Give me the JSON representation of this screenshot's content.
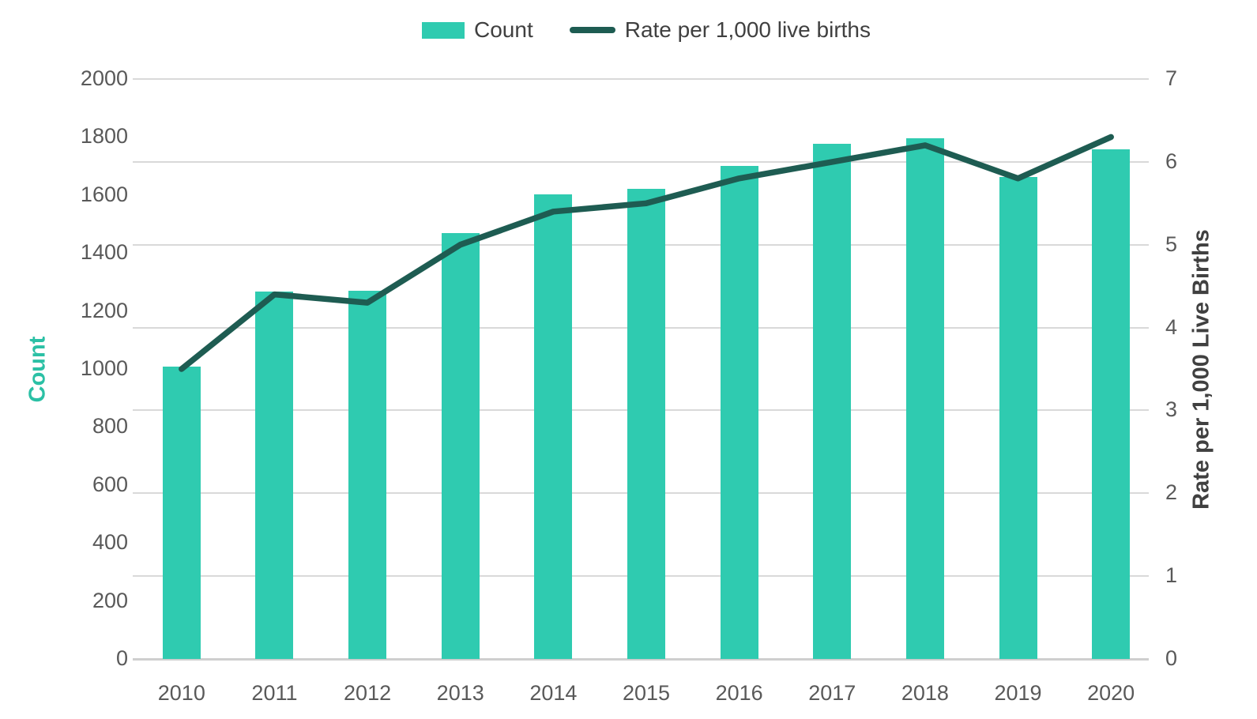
{
  "legend": {
    "count_label": "Count",
    "rate_label": "Rate per 1,000 live births"
  },
  "left_axis": {
    "title": "Count",
    "title_color": "#2bc0a5",
    "tick_labels": [
      "0",
      "200",
      "400",
      "600",
      "800",
      "1000",
      "1200",
      "1400",
      "1600",
      "1800",
      "2000"
    ]
  },
  "right_axis": {
    "title": "Rate per 1,000 Live Births",
    "title_color": "#404040",
    "tick_labels": [
      "0",
      "1",
      "2",
      "3",
      "4",
      "5",
      "6",
      "7"
    ]
  },
  "colors": {
    "bar": "#2fcbb0",
    "line": "#1e5c52",
    "gridline": "#d9d9d9",
    "axis_line": "#cfcfcf",
    "tick_text": "#595959"
  },
  "chart_data": {
    "type": "bar",
    "subtype": "combo-bar-line-dual-axis",
    "categories": [
      "2010",
      "2011",
      "2012",
      "2013",
      "2014",
      "2015",
      "2016",
      "2017",
      "2018",
      "2019",
      "2020"
    ],
    "series": [
      {
        "name": "Count",
        "type": "bar",
        "axis": "left",
        "color": "#2fcbb0",
        "values": [
          1008,
          1267,
          1270,
          1468,
          1601,
          1620,
          1700,
          1776,
          1796,
          1663,
          1757
        ]
      },
      {
        "name": "Rate per 1,000 live births",
        "type": "line",
        "axis": "right",
        "color": "#1e5c52",
        "values": [
          3.5,
          4.4,
          4.3,
          5.0,
          5.4,
          5.5,
          5.8,
          6.0,
          6.2,
          5.8,
          6.3
        ]
      }
    ],
    "title": "",
    "xlabel": "",
    "left_ylabel": "Count",
    "right_ylabel": "Rate per 1,000 Live Births",
    "left_ylim": [
      0,
      2000
    ],
    "left_tick_step": 200,
    "right_ylim": [
      0,
      7
    ],
    "right_tick_step": 1,
    "grid": "horizontal, aligned to right-axis integers",
    "legend_position": "top-center"
  }
}
